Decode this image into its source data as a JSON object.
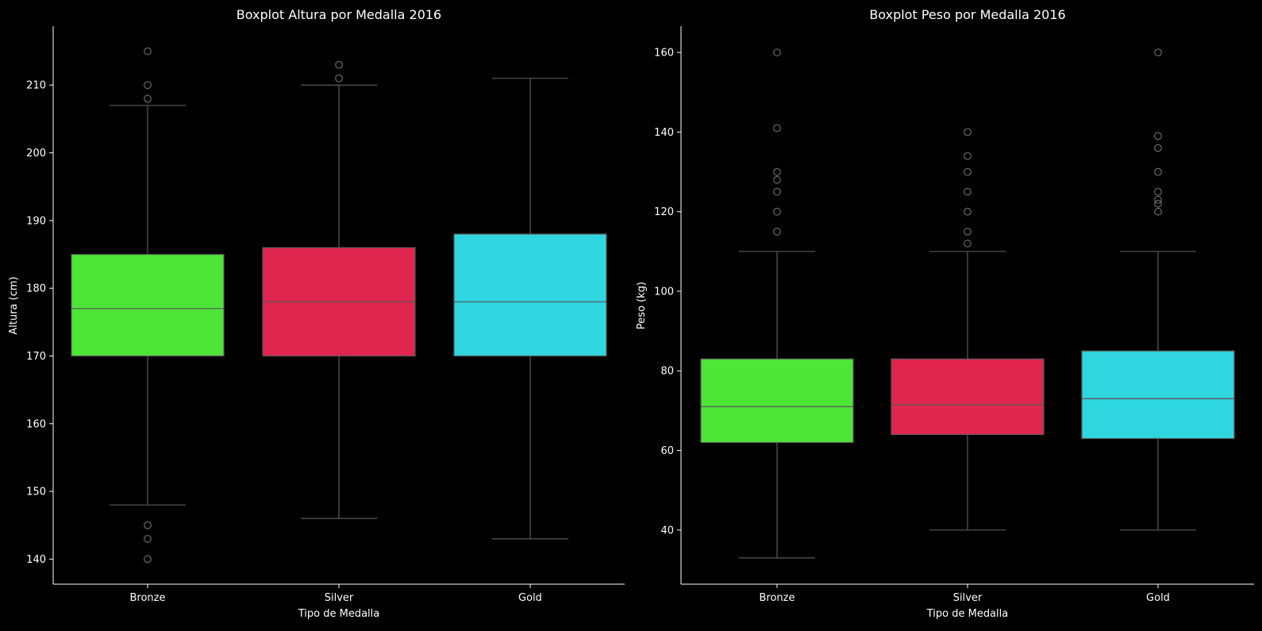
{
  "chart_data": [
    {
      "type": "box",
      "title": "Boxplot Altura por Medalla 2016",
      "xlabel": "Tipo de Medalla",
      "ylabel": "Altura (cm)",
      "ylim": [
        136.3,
        218.7
      ],
      "yticks": [
        140,
        150,
        160,
        170,
        180,
        190,
        200,
        210
      ],
      "categories": [
        "Bronze",
        "Silver",
        "Gold"
      ],
      "colors": [
        "#4de637",
        "#e0254e",
        "#2fd6e0"
      ],
      "boxes": [
        {
          "category": "Bronze",
          "whisker_low": 148,
          "q1": 170,
          "median": 177,
          "q3": 185,
          "whisker_high": 207,
          "outliers": [
            140,
            143,
            145,
            208,
            210,
            215
          ]
        },
        {
          "category": "Silver",
          "whisker_low": 146,
          "q1": 170,
          "median": 178,
          "q3": 186,
          "whisker_high": 210,
          "outliers": [
            211,
            213
          ]
        },
        {
          "category": "Gold",
          "whisker_low": 143,
          "q1": 170,
          "median": 178,
          "q3": 188,
          "whisker_high": 211,
          "outliers": []
        }
      ]
    },
    {
      "type": "box",
      "title": "Boxplot Peso por Medalla 2016",
      "xlabel": "Tipo de Medalla",
      "ylabel": "Peso (kg)",
      "ylim": [
        26.4,
        166.6
      ],
      "yticks": [
        40,
        60,
        80,
        100,
        120,
        140,
        160
      ],
      "categories": [
        "Bronze",
        "Silver",
        "Gold"
      ],
      "colors": [
        "#4de637",
        "#e0254e",
        "#2fd6e0"
      ],
      "boxes": [
        {
          "category": "Bronze",
          "whisker_low": 33,
          "q1": 62,
          "median": 71,
          "q3": 83,
          "whisker_high": 110,
          "outliers": [
            115,
            120,
            125,
            128,
            130,
            141,
            160
          ]
        },
        {
          "category": "Silver",
          "whisker_low": 40,
          "q1": 64,
          "median": 71.5,
          "q3": 83,
          "whisker_high": 110,
          "outliers": [
            112,
            115,
            120,
            125,
            130,
            134,
            140
          ]
        },
        {
          "category": "Gold",
          "whisker_low": 40,
          "q1": 63,
          "median": 73,
          "q3": 85,
          "whisker_high": 110,
          "outliers": [
            120,
            122,
            123,
            125,
            130,
            136,
            139,
            160
          ]
        }
      ]
    }
  ]
}
